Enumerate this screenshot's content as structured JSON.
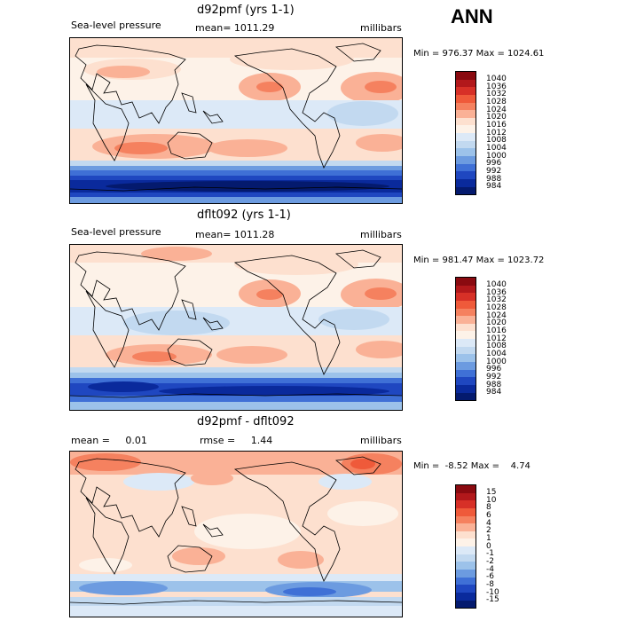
{
  "season": "ANN",
  "panels": [
    {
      "title": "d92pmf (yrs 1-1)",
      "left_label": "Sea-level pressure",
      "mean_label": "mean= 1011.29",
      "units": "millibars",
      "minmax": "Min = 976.37 Max = 1024.61",
      "levels": [
        "1040",
        "1036",
        "1032",
        "1028",
        "1024",
        "1020",
        "1016",
        "1012",
        "1008",
        "1004",
        "1000",
        "996",
        "992",
        "988",
        "984"
      ],
      "colors": [
        "#8a0a10",
        "#b2181b",
        "#d73027",
        "#ef5a3a",
        "#f5815f",
        "#fab196",
        "#fde0cf",
        "#fdf2e8",
        "#dce9f7",
        "#c2d9f0",
        "#9cc2ea",
        "#6c9be0",
        "#3f70d6",
        "#1f47c0",
        "#0a2a9c",
        "#041a6e"
      ]
    },
    {
      "title": "dflt092 (yrs 1-1)",
      "left_label": "Sea-level pressure",
      "mean_label": "mean= 1011.28",
      "units": "millibars",
      "minmax": "Min = 981.47 Max = 1023.72",
      "levels": [
        "1040",
        "1036",
        "1032",
        "1028",
        "1024",
        "1020",
        "1016",
        "1012",
        "1008",
        "1004",
        "1000",
        "996",
        "992",
        "988",
        "984"
      ],
      "colors": [
        "#8a0a10",
        "#b2181b",
        "#d73027",
        "#ef5a3a",
        "#f5815f",
        "#fab196",
        "#fde0cf",
        "#fdf2e8",
        "#dce9f7",
        "#c2d9f0",
        "#9cc2ea",
        "#6c9be0",
        "#3f70d6",
        "#1f47c0",
        "#0a2a9c",
        "#041a6e"
      ]
    },
    {
      "title": "d92pmf - dflt092",
      "left_label": "mean =     0.01",
      "mean_label": "rmse =     1.44",
      "units": "millibars",
      "minmax": "Min =  -8.52 Max =    4.74",
      "levels": [
        "15",
        "10",
        "8",
        "6",
        "4",
        "2",
        "1",
        "0",
        "-1",
        "-2",
        "-4",
        "-6",
        "-8",
        "-10",
        "-15"
      ],
      "colors": [
        "#8a0a10",
        "#b2181b",
        "#d73027",
        "#ef5a3a",
        "#f5815f",
        "#fab196",
        "#fde0cf",
        "#fdf2e8",
        "#dce9f7",
        "#c2d9f0",
        "#9cc2ea",
        "#6c9be0",
        "#3f70d6",
        "#1f47c0",
        "#0a2a9c",
        "#041a6e"
      ]
    }
  ]
}
